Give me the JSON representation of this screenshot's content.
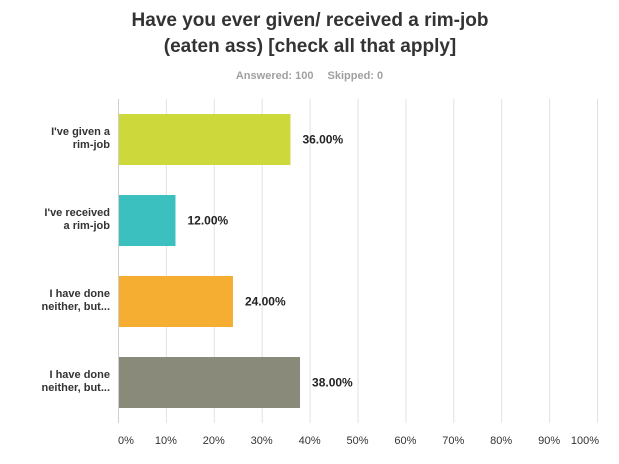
{
  "chart_data": {
    "type": "bar",
    "orientation": "horizontal",
    "title_lines": [
      "Have you ever given/ received a rim-job",
      "(eaten ass) [check all that apply]"
    ],
    "answered_label": "Answered: 100",
    "skipped_label": "Skipped: 0",
    "categories": [
      [
        "I've given a",
        "rim-job"
      ],
      [
        "I've received",
        "a rim-job"
      ],
      [
        "I have done",
        "neither, but..."
      ],
      [
        "I have done",
        "neither, but..."
      ]
    ],
    "values": [
      36,
      12,
      24,
      38
    ],
    "value_labels": [
      "36.00%",
      "12.00%",
      "24.00%",
      "38.00%"
    ],
    "colors": [
      "#cdd83a",
      "#3bbfbf",
      "#f5ad32",
      "#8a8a7b"
    ],
    "xlim": [
      0,
      100
    ],
    "xticks": [
      "0%",
      "10%",
      "20%",
      "30%",
      "40%",
      "50%",
      "60%",
      "70%",
      "80%",
      "90%",
      "100%"
    ],
    "grid": true
  }
}
